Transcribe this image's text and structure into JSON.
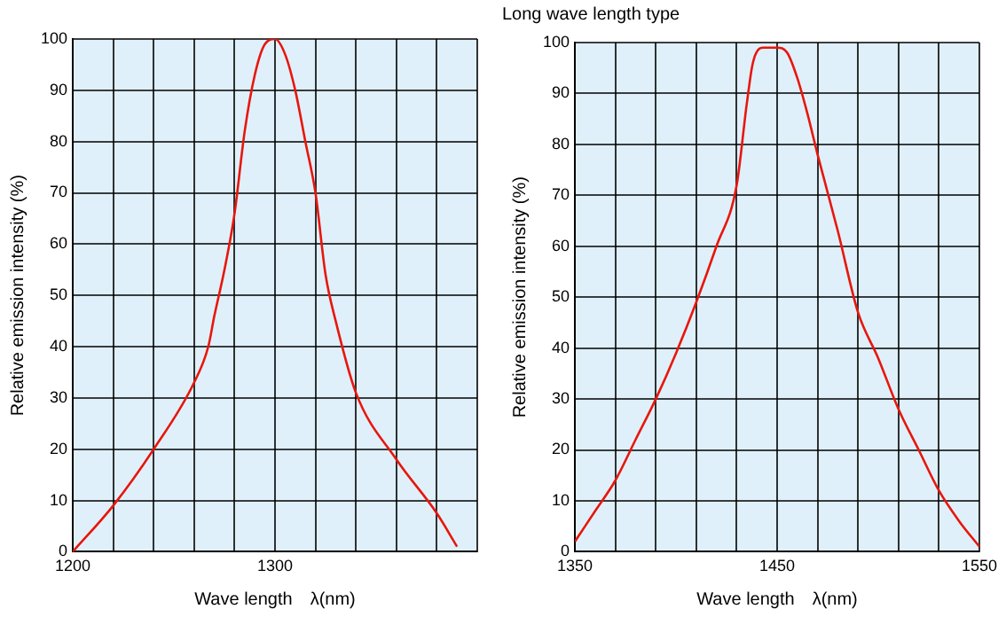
{
  "chart_data": [
    {
      "type": "line",
      "xlabel": "Wave length　λ(nm)",
      "ylabel": "Relative emission intensity (%)",
      "grid": true,
      "legend": false,
      "marker": "none",
      "line_style": "solid",
      "xlim": [
        1200,
        1400
      ],
      "xticks": [
        1200,
        {
          "value": 1220,
          "label": null
        },
        {
          "value": 1240,
          "label": null
        },
        {
          "value": 1260,
          "label": null
        },
        {
          "value": 1280,
          "label": null
        },
        1300,
        {
          "value": 1320,
          "label": null
        },
        {
          "value": 1340,
          "label": null
        },
        {
          "value": 1360,
          "label": null
        },
        {
          "value": 1380,
          "label": null
        },
        {
          "value": 1400,
          "label": null
        }
      ],
      "ylim": [
        0,
        100
      ],
      "yticks": [
        0,
        10,
        20,
        30,
        40,
        50,
        60,
        70,
        80,
        90,
        100
      ],
      "series": [
        {
          "color": "#e8160c",
          "x": [
            1200,
            1220,
            1240,
            1260,
            1267,
            1270,
            1275,
            1280,
            1285,
            1290,
            1295,
            1300,
            1305,
            1310,
            1315,
            1320,
            1325,
            1330,
            1340,
            1360,
            1380,
            1390
          ],
          "values": [
            0,
            9,
            20,
            33,
            40,
            46,
            55,
            66,
            82,
            93,
            99,
            100,
            97,
            90,
            80,
            70,
            54,
            45,
            31,
            18,
            7.5,
            1
          ]
        }
      ]
    },
    {
      "type": "line",
      "title": "Long wave length type",
      "xlabel": "Wave length　λ(nm)",
      "ylabel": "Relative emission intensity (%)",
      "grid": true,
      "legend": false,
      "marker": "none",
      "line_style": "solid",
      "xlim": [
        1350,
        1550
      ],
      "xticks": [
        1350,
        {
          "value": 1370,
          "label": null
        },
        {
          "value": 1390,
          "label": null
        },
        {
          "value": 1410,
          "label": null
        },
        {
          "value": 1430,
          "label": null
        },
        1450,
        {
          "value": 1470,
          "label": null
        },
        {
          "value": 1490,
          "label": null
        },
        {
          "value": 1510,
          "label": null
        },
        {
          "value": 1530,
          "label": null
        },
        1550
      ],
      "ylim": [
        0,
        100
      ],
      "yticks": [
        0,
        10,
        20,
        30,
        40,
        50,
        60,
        70,
        80,
        90,
        100
      ],
      "series": [
        {
          "color": "#e8160c",
          "x": [
            1350,
            1360,
            1370,
            1380,
            1390,
            1400,
            1410,
            1420,
            1430,
            1435,
            1438,
            1443,
            1450,
            1455,
            1460,
            1465,
            1470,
            1480,
            1490,
            1500,
            1510,
            1520,
            1530,
            1540,
            1550
          ],
          "values": [
            2,
            8,
            14,
            22,
            30,
            39,
            49,
            60,
            72,
            88,
            96,
            99,
            99,
            98,
            93,
            86,
            78,
            63,
            47,
            38,
            28,
            20,
            12,
            6,
            1
          ]
        }
      ]
    }
  ]
}
